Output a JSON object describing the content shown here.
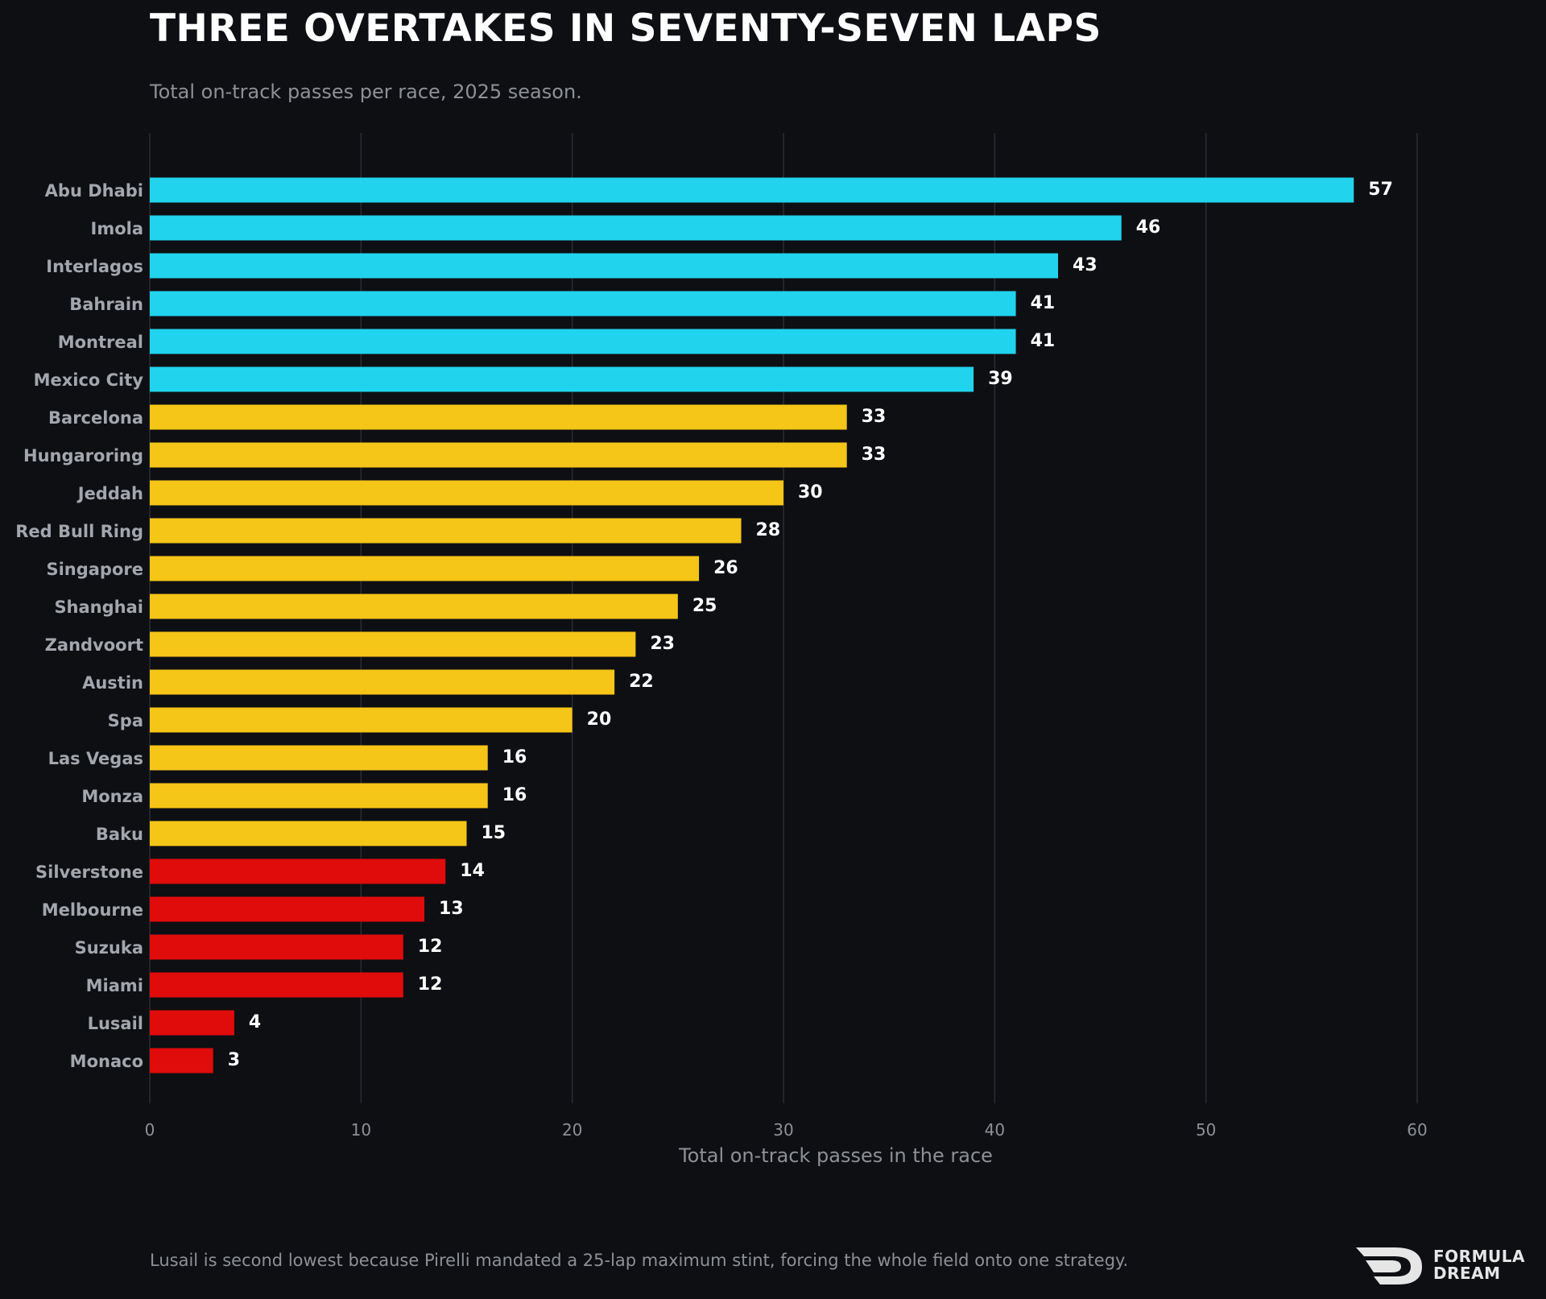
{
  "header": {
    "title": "THREE OVERTAKES IN SEVENTY-SEVEN LAPS",
    "subtitle": "Total on-track passes per race, 2025 season."
  },
  "footer": {
    "note": "Lusail is second lowest because Pirelli mandated a 25-lap maximum stint, forcing the whole field onto one strategy.",
    "logo_line1": "FORMULA",
    "logo_line2": "DREAM",
    "logo_icon": "formula-dream-logo-icon"
  },
  "chart_data": {
    "type": "bar",
    "orientation": "horizontal",
    "title": "THREE OVERTAKES IN SEVENTY-SEVEN LAPS",
    "subtitle": "Total on-track passes per race, 2025 season.",
    "xlabel": "Total on-track passes in the race",
    "ylabel": "",
    "xlim": [
      0,
      60
    ],
    "xticks": [
      0,
      10,
      20,
      30,
      40,
      50,
      60
    ],
    "grid": "vertical",
    "categories": [
      "Abu Dhabi",
      "Imola",
      "Interlagos",
      "Bahrain",
      "Montreal",
      "Mexico City",
      "Barcelona",
      "Hungaroring",
      "Jeddah",
      "Red Bull Ring",
      "Singapore",
      "Shanghai",
      "Zandvoort",
      "Austin",
      "Spa",
      "Las Vegas",
      "Monza",
      "Baku",
      "Silverstone",
      "Melbourne",
      "Suzuka",
      "Miami",
      "Lusail",
      "Monaco"
    ],
    "values": [
      57,
      46,
      43,
      41,
      41,
      39,
      33,
      33,
      30,
      28,
      26,
      25,
      23,
      22,
      20,
      16,
      16,
      15,
      14,
      13,
      12,
      12,
      4,
      3
    ],
    "bar_groups": [
      "high",
      "high",
      "high",
      "high",
      "high",
      "high",
      "mid",
      "mid",
      "mid",
      "mid",
      "mid",
      "mid",
      "mid",
      "mid",
      "mid",
      "mid",
      "mid",
      "mid",
      "low",
      "low",
      "low",
      "low",
      "low",
      "low"
    ],
    "colors": {
      "high": "#22d3ee",
      "mid": "#f5c518",
      "low": "#e00b0b",
      "background": "#0e0f13",
      "grid": "#2b2d33",
      "category_label": "#a3a6ad",
      "tick_label": "#8d9096",
      "value_label": "#ffffff"
    }
  }
}
